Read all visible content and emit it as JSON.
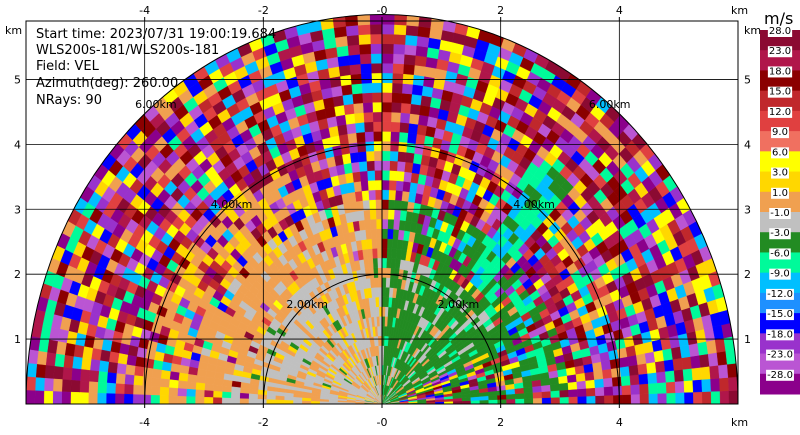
{
  "header": {
    "start_time": "Start time: 2023/07/31 19:00:19.684",
    "site": "WLS200s-181/WLS200s-181",
    "field": "Field: VEL",
    "azimuth": "Azimuth(deg): 260.00",
    "nrays": "NRays: 90"
  },
  "chart_data": {
    "type": "heatmap",
    "subtype": "polar-ppi-rhi",
    "field": "VEL",
    "x_unit": "km",
    "y_unit": "km",
    "xlim": [
      -6,
      6
    ],
    "ylim": [
      0,
      5.9
    ],
    "x_ticks": [
      -4,
      -2,
      0,
      2,
      4
    ],
    "y_ticks": [
      1,
      2,
      3,
      4,
      5
    ],
    "x_tick_labels": [
      "-4",
      "-2",
      "-0",
      "2",
      "4"
    ],
    "y_tick_labels": [
      "1",
      "2",
      "3",
      "4",
      "5"
    ],
    "range_rings_km": [
      2,
      4,
      6
    ],
    "range_ring_labels": [
      "2.00km",
      "4.00km",
      "6.00km"
    ],
    "max_range_km": 6,
    "grid": true,
    "colorbar": {
      "label": "m/s",
      "placement": "right",
      "tick_labels": [
        "28.0",
        "23.0",
        "18.0",
        "15.0",
        "12.0",
        "9.0",
        "6.0",
        "3.0",
        "1.0",
        "-1.0",
        "-3.0",
        "-6.0",
        "-9.0",
        "-12.0",
        "-15.0",
        "-18.0",
        "-23.0",
        "-28.0"
      ],
      "colors": [
        "#8b0a32",
        "#b0164a",
        "#8b0000",
        "#c0282c",
        "#e04040",
        "#f07060",
        "#ffff00",
        "#ffd700",
        "#f0a050",
        "#c0c0c0",
        "#228b22",
        "#00fa9a",
        "#00bfff",
        "#1e90ff",
        "#0000ff",
        "#9932cc",
        "#ba55d3",
        "#8b008b"
      ]
    },
    "regions": [
      {
        "name": "near-field-gray-orange",
        "x_range": [
          -2.1,
          0
        ],
        "y_range": [
          0,
          3.0
        ],
        "dominant": "-1.0 to 1.0 (gray) / 1.0 to 3.0 (orange)"
      },
      {
        "name": "near-field-green",
        "x_range": [
          0,
          1.6
        ],
        "y_range": [
          0,
          2.7
        ],
        "dominant": "-3.0 to -1.0 (green)"
      },
      {
        "name": "upper-left-orange",
        "x_range": [
          -3.5,
          -1.5
        ],
        "y_range": [
          2.2,
          3.4
        ],
        "dominant": "1.0 to 3.0 (orange)"
      },
      {
        "name": "cyan-streak",
        "x_range": [
          1.6,
          3.8
        ],
        "y_range": [
          2.2,
          3.8
        ],
        "dominant": "-9.0 to -3.0 (cyan/green)"
      },
      {
        "name": "far-field-noise",
        "x_range": [
          -6,
          6
        ],
        "y_range": [
          0,
          6
        ],
        "dominant": "noisy multicolor beyond ~4 km"
      }
    ]
  }
}
